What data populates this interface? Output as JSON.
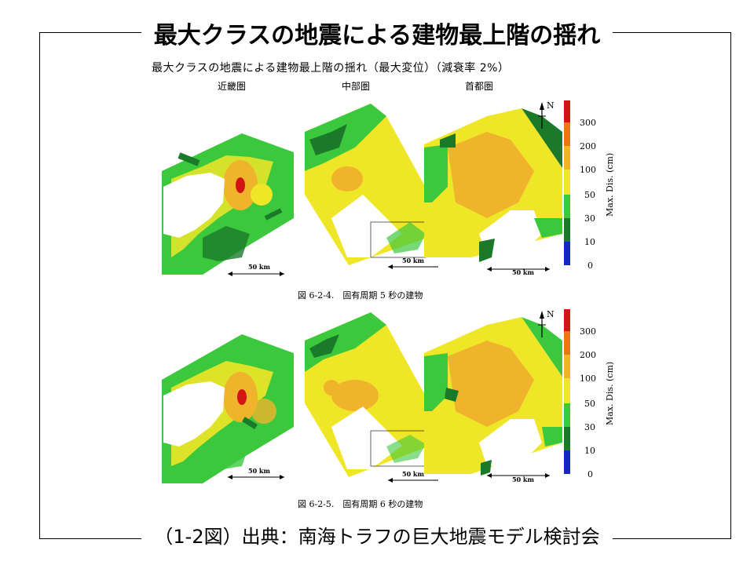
{
  "title": "最大クラスの地震による建物最上階の揺れ",
  "subtitle": "最大クラスの地震による建物最上階の揺れ（最大変位）（減衰率 2%）",
  "regions": [
    "近畿圏",
    "中部圏",
    "首都圏"
  ],
  "figures": [
    {
      "caption": "図 6-2-4.　固有周期 5 秒の建物"
    },
    {
      "caption": "図 6-2-5.　固有周期 6 秒の建物"
    }
  ],
  "scale_label": "50 km",
  "north_label": "N",
  "legend": {
    "axis_title": "Max. Dis. (cm)",
    "ticks": [
      "300",
      "200",
      "100",
      "50",
      "30",
      "10",
      "0"
    ],
    "colors": {
      "0-10": "#1428c8",
      "10-30": "#1a7a2a",
      "30-50": "#3cc83c",
      "50-100": "#f0e628",
      "100-200": "#f0b42c",
      "200-300": "#e8781c",
      "300+": "#d21414"
    }
  },
  "footer": "（1-2図）出典：南海トラフの巨大地震モデル検討会"
}
